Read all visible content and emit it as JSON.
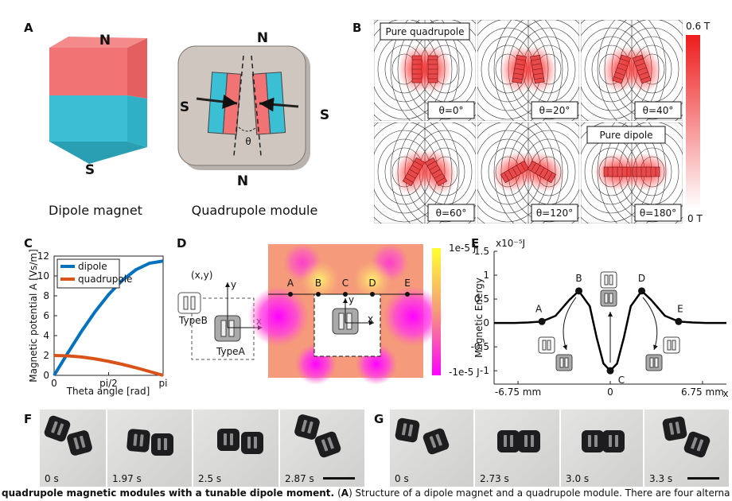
{
  "panel_labels": [
    "A",
    "B",
    "C",
    "D",
    "E",
    "F",
    "G"
  ],
  "A": {
    "dipole": {
      "north": "N",
      "south": "S",
      "caption": "Dipole magnet"
    },
    "quadrupole": {
      "north_top": "N",
      "south_left": "S",
      "south_right": "S",
      "north_bottom": "N",
      "angle": "θ",
      "caption": "Quadrupole module"
    }
  },
  "B": {
    "annotations": [
      "Pure quadrupole",
      "Pure dipole"
    ],
    "panels": [
      {
        "value": 0,
        "label": "θ=0°"
      },
      {
        "value": 20,
        "label": "θ=20°"
      },
      {
        "value": 40,
        "label": "θ=40°"
      },
      {
        "value": 60,
        "label": "θ=60°"
      },
      {
        "value": 120,
        "label": "θ=120°"
      },
      {
        "value": 180,
        "label": "θ=180°"
      }
    ],
    "colorbar": {
      "max": "0.6 T",
      "min": "0 T"
    }
  },
  "D": {
    "inset": {
      "coord": "(x,y)",
      "type_b": "TypeB",
      "type_a": "TypeA",
      "y": "y",
      "x": "x"
    },
    "map": {
      "points": [
        "A",
        "B",
        "C",
        "D",
        "E"
      ],
      "y": "y",
      "x": "x"
    },
    "colorbar": {
      "max": "1e-5 J",
      "min": "-1e-5 J"
    }
  },
  "F": {
    "times": [
      "0 s",
      "1.97 s",
      "2.5 s",
      "2.87 s"
    ]
  },
  "G": {
    "times": [
      "0 s",
      "2.73 s",
      "3.0 s",
      "3.3 s"
    ]
  },
  "caption": [
    "quadrupole magnetic modules with a tunable dipole moment.",
    "(",
    "A",
    ") Structure of a dipole magnet and a quadrupole module. There are four alterna"
  ],
  "chart_data": [
    {
      "type": "line",
      "ylabel": "Magnetic potential A [Vs/m]",
      "xlabel": "Theta angle [rad]",
      "x": [
        0,
        0.3927,
        0.7854,
        1.1781,
        1.5708,
        1.9635,
        2.3562,
        2.7489,
        3.1416
      ],
      "series": [
        {
          "name": "dipole",
          "color": "#0072bd",
          "values": [
            0,
            2.24,
            4.4,
            6.39,
            8.13,
            9.56,
            10.62,
            11.28,
            11.5
          ]
        },
        {
          "name": "quadrupole",
          "color": "#d95319",
          "values": [
            2,
            1.96,
            1.85,
            1.66,
            1.41,
            1.11,
            0.77,
            0.39,
            0
          ]
        }
      ],
      "xlim": [
        0,
        3.1416
      ],
      "ylim": [
        0,
        12
      ],
      "xticks": [
        0,
        {
          "value": 1.5708,
          "label": "pi/2"
        },
        {
          "value": 3.1416,
          "label": "pi"
        }
      ],
      "yticks": [
        0,
        2,
        4,
        6,
        8,
        10,
        12
      ],
      "legend": "upper left",
      "box": true
    },
    {
      "type": "line",
      "ylabel": "Magnetic Energy",
      "xlabel": "x",
      "unit": "x10⁻⁵J",
      "x": [
        -8.5,
        -7,
        -6,
        -5,
        -4,
        -3,
        -2.3,
        -1.5,
        -1,
        -0.5,
        0,
        0.5,
        1,
        1.5,
        2.3,
        3,
        4,
        5,
        6,
        7,
        8.5
      ],
      "series": [
        {
          "color": "#000000",
          "values": [
            0,
            0,
            0.01,
            0.03,
            0.15,
            0.48,
            0.67,
            0.35,
            -0.3,
            -0.85,
            -1,
            -0.85,
            -0.3,
            0.35,
            0.67,
            0.48,
            0.15,
            0.03,
            0.01,
            0,
            0
          ]
        }
      ],
      "points": {
        "labels": [
          "A",
          "B",
          "C",
          "D",
          "E"
        ],
        "x": [
          -5,
          -2.3,
          0,
          2.3,
          5
        ],
        "y": [
          0.03,
          0.67,
          -1,
          0.67,
          0.03
        ]
      },
      "xlim": [
        -8.5,
        8.5
      ],
      "ylim": [
        -1.28,
        1.5
      ],
      "xticks": [
        {
          "value": -6.75,
          "label": "-6.75 mm"
        },
        0,
        {
          "value": 6.75,
          "label": "6.75 mm"
        }
      ],
      "yticks": [
        -1,
        -0.5,
        0,
        0.5,
        1,
        1.5
      ],
      "box": false
    }
  ]
}
